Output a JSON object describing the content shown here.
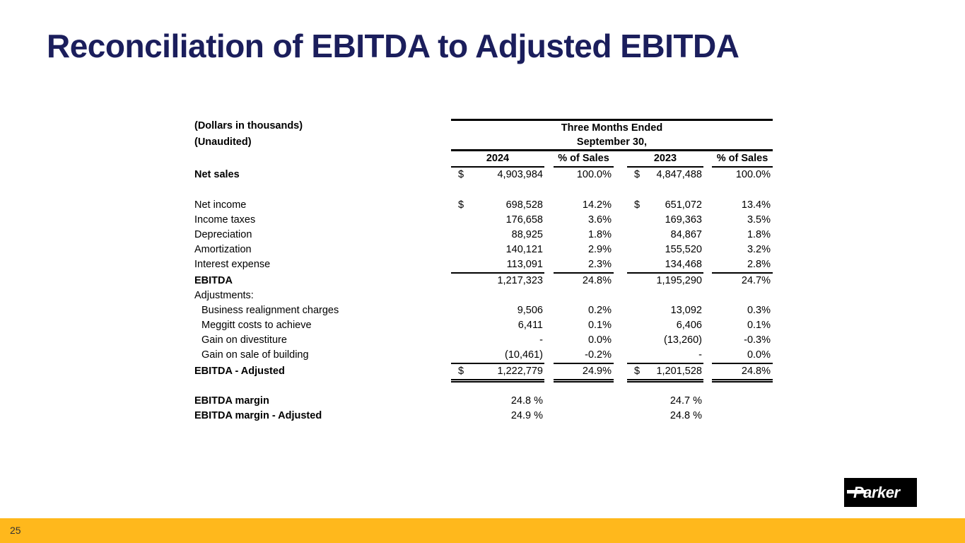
{
  "slide": {
    "title": "Reconciliation of EBITDA to Adjusted EBITDA",
    "title_color": "#1B1E5C",
    "accent_color": "#FFB81C",
    "page_number": "25",
    "logo_text": "Parker"
  },
  "table": {
    "left_header_lines": [
      "(Dollars in thousands)",
      "(Unaudited)"
    ],
    "period_header_lines": [
      "Three Months Ended",
      "September 30,"
    ],
    "column_headers": [
      "2024",
      "% of Sales",
      "2023",
      "% of Sales"
    ],
    "rows": [
      {
        "label": "Net sales",
        "bold": true,
        "d1": "$",
        "v1": "4,903,984",
        "p1": "100.0%",
        "d2": "$",
        "v2": "4,847,488",
        "p2": "100.0%",
        "spacer_after": 22
      },
      {
        "label": "Net income",
        "d1": "$",
        "v1": "698,528",
        "p1": "14.2%",
        "d2": "$",
        "v2": "651,072",
        "p2": "13.4%"
      },
      {
        "label": "Income taxes",
        "v1": "176,658",
        "p1": "3.6%",
        "v2": "169,363",
        "p2": "3.5%"
      },
      {
        "label": "Depreciation",
        "v1": "88,925",
        "p1": "1.8%",
        "v2": "84,867",
        "p2": "1.8%"
      },
      {
        "label": "Amortization",
        "v1": "140,121",
        "p1": "2.9%",
        "v2": "155,520",
        "p2": "3.2%"
      },
      {
        "label": "Interest expense",
        "v1": "113,091",
        "p1": "2.3%",
        "v2": "134,468",
        "p2": "2.8%",
        "line": "single"
      },
      {
        "label": "EBITDA",
        "bold": true,
        "v1": "1,217,323",
        "p1": "24.8%",
        "v2": "1,195,290",
        "p2": "24.7%"
      },
      {
        "label": "Adjustments:"
      },
      {
        "label": "Business realignment charges",
        "indent": true,
        "v1": "9,506",
        "p1": "0.2%",
        "v2": "13,092",
        "p2": "0.3%"
      },
      {
        "label": "Meggitt costs to achieve",
        "indent": true,
        "v1": "6,411",
        "p1": "0.1%",
        "v2": "6,406",
        "p2": "0.1%"
      },
      {
        "label": "Gain on divestiture",
        "indent": true,
        "v1": "-",
        "p1": "0.0%",
        "v2": "(13,260)",
        "p2": "-0.3%"
      },
      {
        "label": "Gain on sale of building",
        "indent": true,
        "v1": "(10,461)",
        "p1": "-0.2%",
        "v2": "-",
        "p2": "0.0%",
        "line": "single"
      },
      {
        "label": "EBITDA - Adjusted",
        "bold": true,
        "d1": "$",
        "v1": "1,222,779",
        "p1": "24.9%",
        "d2": "$",
        "v2": "1,201,528",
        "p2": "24.8%",
        "line": "double",
        "spacer_after": 16
      },
      {
        "label": "EBITDA margin",
        "bold": true,
        "v1": "24.8 %",
        "v2": "24.7 %"
      },
      {
        "label": "EBITDA margin - Adjusted",
        "bold": true,
        "v1": "24.9 %",
        "v2": "24.8 %"
      }
    ]
  }
}
